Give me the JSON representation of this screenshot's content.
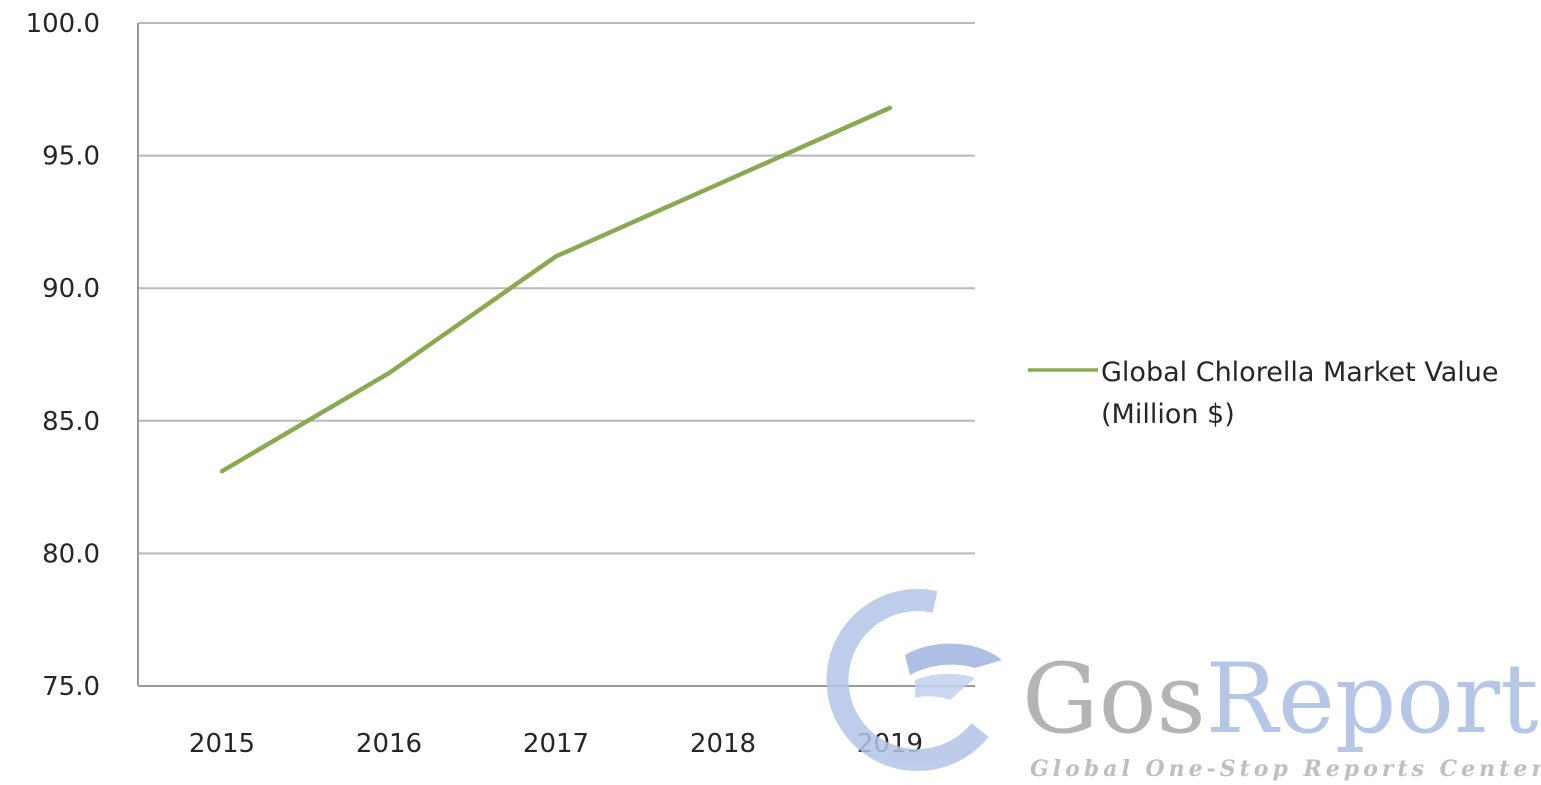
{
  "chart_data": {
    "type": "line",
    "title": "",
    "xlabel": "",
    "ylabel": "",
    "x": [
      "2015",
      "2016",
      "2017",
      "2018",
      "2019"
    ],
    "series": [
      {
        "name": "Global Chlorella Market Value (Million $)",
        "values": [
          83.1,
          86.8,
          91.2,
          94.0,
          96.8
        ],
        "color": "#8aaa52"
      }
    ],
    "ylim": [
      75.0,
      100.0
    ],
    "yticks": [
      "75.0",
      "80.0",
      "85.0",
      "90.0",
      "95.0",
      "100.0"
    ],
    "grid": true,
    "legend": "right",
    "legend_lines": [
      "Global Chlorella Market Value",
      "(Million $)"
    ]
  },
  "watermark": {
    "name_part1": "Gos",
    "name_part2": "Reports",
    "tagline": "Global One-Stop Reports Center",
    "colors": {
      "gray": "#a8a8a8",
      "blue": "#a9bde3"
    }
  },
  "colors": {
    "gridline": "#b9b9b9",
    "axis": "#9a9a9a",
    "text": "#262626"
  }
}
